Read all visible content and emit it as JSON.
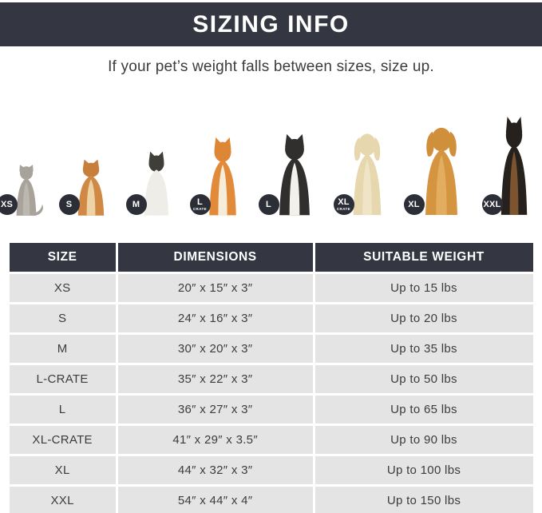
{
  "header": {
    "title": "SIZING INFO",
    "subtitle": "If your pet’s weight falls between sizes, size up."
  },
  "colors": {
    "banner_bg": "#343741",
    "banner_text": "#ffffff",
    "badge_bg": "#2c2e37",
    "badge_text": "#ffffff",
    "row_bg": "#e4e4e4",
    "row_text": "#3c3c3c",
    "page_bg": "#ffffff"
  },
  "pets": [
    {
      "name": "cat",
      "icon": "cat-icon",
      "variant": "cat",
      "badge": "XS",
      "badge_sub": "",
      "height": 66,
      "width": 54,
      "colors": {
        "body": "#a7a29a",
        "head": "#a7a29a",
        "chest": "#bcb8b0"
      }
    },
    {
      "name": "pomeranian",
      "icon": "pomeranian-icon",
      "variant": "prick",
      "badge": "S",
      "badge_sub": "",
      "height": 72,
      "width": 60,
      "colors": {
        "body": "#d08944",
        "head": "#c87f3c",
        "chest": "#ecd2a4"
      }
    },
    {
      "name": "french-bulldog",
      "icon": "french-bulldog-icon",
      "variant": "prick",
      "badge": "M",
      "badge_sub": "",
      "height": 82,
      "width": 56,
      "colors": {
        "body": "#efede8",
        "head": "#3f3e39",
        "chest": "#efede8"
      }
    },
    {
      "name": "shiba-inu",
      "icon": "shiba-inu-icon",
      "variant": "prick",
      "badge": "L",
      "badge_sub": "CRATE",
      "height": 100,
      "width": 62,
      "colors": {
        "body": "#e08a3a",
        "head": "#dd8636",
        "chest": "#f6ecda"
      }
    },
    {
      "name": "border-collie",
      "icon": "border-collie-icon",
      "variant": "prick",
      "badge": "L",
      "badge_sub": "",
      "height": 104,
      "width": 70,
      "colors": {
        "body": "#312f2d",
        "head": "#312f2d",
        "chest": "#f3f1ec"
      }
    },
    {
      "name": "labrador",
      "icon": "labrador-icon",
      "variant": "floppy",
      "badge": "XL",
      "badge_sub": "CRATE",
      "height": 110,
      "width": 64,
      "colors": {
        "body": "#e6d7ae",
        "head": "#e6d7ae",
        "chest": "#efe5c6"
      }
    },
    {
      "name": "golden-retriever",
      "icon": "golden-retriever-icon",
      "variant": "floppy",
      "badge": "XL",
      "badge_sub": "",
      "height": 118,
      "width": 74,
      "colors": {
        "body": "#d59540",
        "head": "#d08f3a",
        "chest": "#e2ad5e"
      }
    },
    {
      "name": "doberman",
      "icon": "doberman-icon",
      "variant": "prick",
      "badge": "XXL",
      "badge_sub": "",
      "height": 126,
      "width": 60,
      "colors": {
        "body": "#26211c",
        "head": "#26211c",
        "chest": "#7c5530"
      }
    }
  ],
  "table": {
    "headers": [
      "SIZE",
      "DIMENSIONS",
      "SUITABLE WEIGHT"
    ],
    "rows": [
      {
        "size": "XS",
        "dimensions": "20″ x 15″ x 3″",
        "weight": "Up to 15 lbs"
      },
      {
        "size": "S",
        "dimensions": "24″ x 16″ x 3″",
        "weight": "Up to 20 lbs"
      },
      {
        "size": "M",
        "dimensions": "30″ x 20″ x 3″",
        "weight": "Up to 35 lbs"
      },
      {
        "size": "L-CRATE",
        "dimensions": "35″ x 22″ x 3″",
        "weight": "Up to 50 lbs"
      },
      {
        "size": "L",
        "dimensions": "36″ x 27″ x 3″",
        "weight": "Up to 65 lbs"
      },
      {
        "size": "XL-CRATE",
        "dimensions": "41″ x 29″ x 3.5″",
        "weight": "Up to 90 lbs"
      },
      {
        "size": "XL",
        "dimensions": "44″ x 32″ x 3″",
        "weight": "Up to 100 lbs"
      },
      {
        "size": "XXL",
        "dimensions": "54″ x 44″ x 4″",
        "weight": "Up to 150 lbs"
      }
    ]
  }
}
